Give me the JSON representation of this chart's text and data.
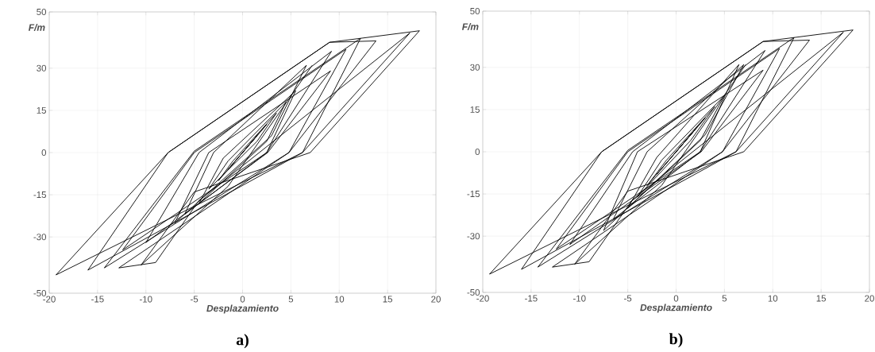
{
  "chart_data": [
    {
      "type": "line",
      "xlabel": "Desplazamiento",
      "ylabel": "F/m",
      "annotations": [
        "a)"
      ],
      "grid": true,
      "marker": "none",
      "line_style": "solid",
      "xlim": [
        -20,
        20
      ],
      "xticks": [
        -20,
        -15,
        -10,
        -5,
        0,
        5,
        10,
        15,
        20
      ],
      "ylim": [
        -50,
        50
      ],
      "yticks": [
        -50,
        -30,
        -15,
        0,
        15,
        30,
        50
      ],
      "series": [
        {
          "color": "#000000",
          "x": [
            0,
            1.5,
            0.5,
            -1.5,
            -0.5,
            2.5,
            1,
            -2.5,
            -1,
            3.5,
            1.5,
            -3.5,
            -1.5,
            4.5,
            2.5,
            -4.5,
            -2,
            5.5,
            2.5,
            -6,
            -3,
            6.6,
            3,
            -7,
            -3.5,
            9.1,
            2.6,
            -10,
            -4.5,
            9.2,
            2.5,
            -12.4,
            -5,
            10.7,
            4.8,
            -14.3,
            -5,
            12.2,
            6.2,
            -16,
            -7.7,
            9,
            13.8,
            4.8,
            -12.8,
            -9,
            -4.5,
            17.3,
            6.2,
            -19.3,
            -7.7,
            9,
            18.3,
            7,
            -5,
            -10.5,
            -1.5,
            7.2
          ],
          "values": [
            0,
            6,
            2,
            -6,
            -2,
            10,
            4,
            -10,
            -3,
            14,
            4,
            -13,
            -3,
            18,
            4,
            -18,
            -2,
            22,
            0,
            -22,
            0,
            31,
            6,
            -25,
            0,
            29,
            0,
            -32,
            0,
            36,
            0,
            -34.6,
            0,
            36.7,
            0,
            -41,
            0.5,
            40.6,
            0,
            -41.8,
            0,
            39.2,
            39.7,
            0,
            -41,
            -39.1,
            -17,
            42.5,
            0,
            -43.5,
            0,
            39.2,
            43.3,
            0,
            -14,
            -40,
            -12,
            31
          ]
        }
      ]
    },
    {
      "type": "line",
      "xlabel": "Desplazamiento",
      "ylabel": "F/m",
      "annotations": [
        "b)"
      ],
      "grid": true,
      "marker": "none",
      "line_style": "solid",
      "xlim": [
        -20,
        20
      ],
      "xticks": [
        -20,
        -15,
        -10,
        -5,
        0,
        5,
        10,
        15,
        20
      ],
      "ylim": [
        -50,
        50
      ],
      "yticks": [
        -50,
        -30,
        -15,
        0,
        15,
        30,
        50
      ],
      "series": [
        {
          "color": "#000000",
          "x": [
            0,
            2,
            0.5,
            -2,
            -0.5,
            3,
            1,
            -3,
            -1,
            4,
            1.5,
            -4,
            -1.5,
            5,
            2.5,
            -5,
            -2,
            6.5,
            2.5,
            -6.5,
            -3,
            7,
            3,
            -7.5,
            -4,
            9,
            2.6,
            -11,
            -4.5,
            9.2,
            2.5,
            -12.4,
            -5,
            10.7,
            4.8,
            -14.3,
            -5,
            12.2,
            6.2,
            -16,
            -7.7,
            9,
            13.8,
            4.8,
            -12.8,
            -9,
            -4.5,
            17.3,
            6.2,
            -19.3,
            -7.7,
            9,
            18.3,
            7,
            -5,
            -10.5,
            -1.5,
            7.2
          ],
          "values": [
            0,
            8,
            2,
            -8,
            -2,
            12,
            4,
            -12,
            -3,
            16,
            4,
            -16,
            -3,
            20,
            4,
            -20,
            -2,
            31,
            0,
            -24,
            0,
            31,
            6,
            -28,
            0,
            29,
            0,
            -33,
            0,
            36,
            0,
            -34.6,
            0,
            36.7,
            0,
            -41,
            0.5,
            40.6,
            0,
            -41.8,
            0,
            39.2,
            39.7,
            0,
            -41,
            -39.1,
            -17,
            42.5,
            0,
            -43.5,
            0,
            39.2,
            43.3,
            0,
            -14,
            -40,
            -12,
            31
          ]
        }
      ]
    }
  ]
}
